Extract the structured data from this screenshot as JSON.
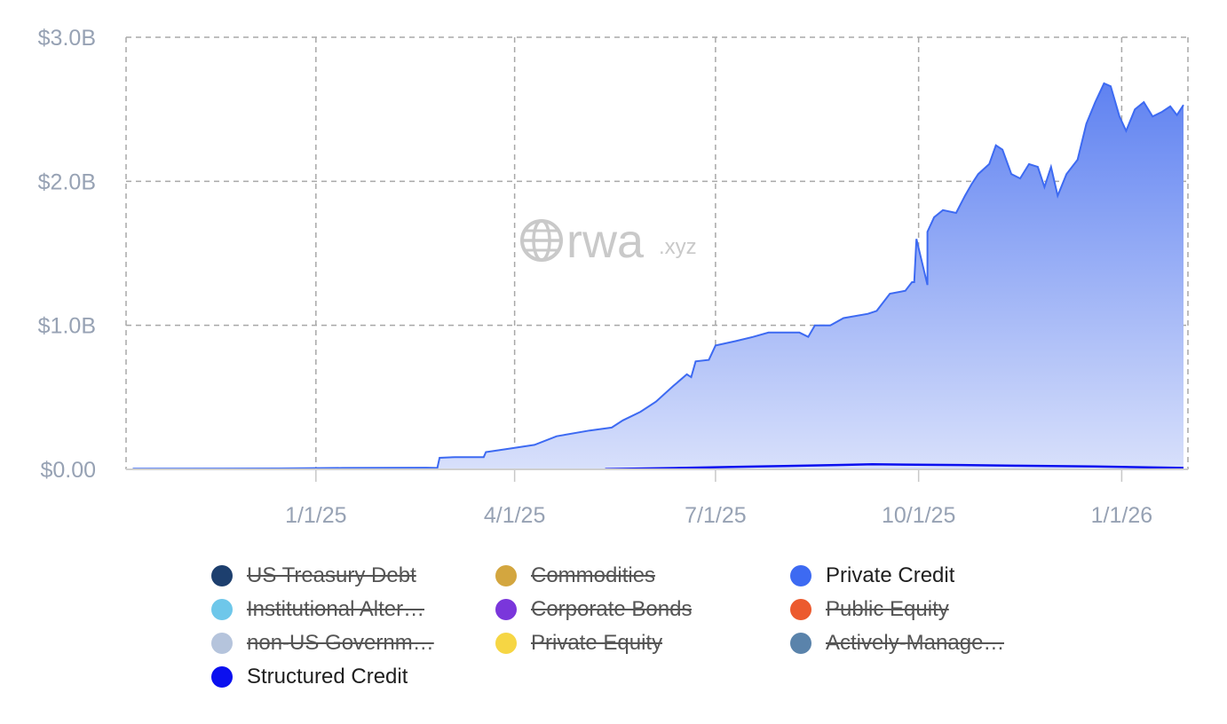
{
  "chart_data": {
    "type": "area",
    "y_ticks": [
      "$0.00",
      "$1.0B",
      "$2.0B",
      "$3.0B"
    ],
    "y_tick_values": [
      0,
      1.0,
      2.0,
      3.0
    ],
    "ylim": [
      0,
      3.0
    ],
    "y_unit": "billions USD",
    "x_ticks": [
      "1/1/25",
      "4/1/25",
      "7/1/25",
      "10/1/25",
      "1/1/26"
    ],
    "x_tick_dates": [
      "2025-01-01",
      "2025-04-01",
      "2025-07-01",
      "2025-10-01",
      "2026-01-01"
    ],
    "xlim": [
      "2024-10-07",
      "2026-01-31"
    ],
    "grid": true,
    "legend_position": "bottom",
    "series": [
      {
        "name": "Private Credit",
        "color": "#3d6af2",
        "visible": true,
        "points": [
          [
            "2024-10-10",
            0.005
          ],
          [
            "2024-12-15",
            0.006
          ],
          [
            "2025-01-13",
            0.01
          ],
          [
            "2025-02-20",
            0.012
          ],
          [
            "2025-02-25",
            0.01
          ],
          [
            "2025-02-26",
            0.08
          ],
          [
            "2025-03-05",
            0.085
          ],
          [
            "2025-03-18",
            0.085
          ],
          [
            "2025-03-19",
            0.12
          ],
          [
            "2025-03-28",
            0.14
          ],
          [
            "2025-04-10",
            0.17
          ],
          [
            "2025-04-20",
            0.23
          ],
          [
            "2025-05-05",
            0.27
          ],
          [
            "2025-05-15",
            0.29
          ],
          [
            "2025-05-20",
            0.34
          ],
          [
            "2025-05-28",
            0.4
          ],
          [
            "2025-06-04",
            0.47
          ],
          [
            "2025-06-12",
            0.58
          ],
          [
            "2025-06-18",
            0.66
          ],
          [
            "2025-06-20",
            0.64
          ],
          [
            "2025-06-22",
            0.75
          ],
          [
            "2025-06-28",
            0.76
          ],
          [
            "2025-07-01",
            0.86
          ],
          [
            "2025-07-10",
            0.89
          ],
          [
            "2025-07-18",
            0.92
          ],
          [
            "2025-07-25",
            0.95
          ],
          [
            "2025-08-08",
            0.95
          ],
          [
            "2025-08-12",
            0.92
          ],
          [
            "2025-08-15",
            1.0
          ],
          [
            "2025-08-22",
            1.0
          ],
          [
            "2025-08-28",
            1.05
          ],
          [
            "2025-09-08",
            1.08
          ],
          [
            "2025-09-12",
            1.1
          ],
          [
            "2025-09-18",
            1.22
          ],
          [
            "2025-09-25",
            1.24
          ],
          [
            "2025-10-05",
            1.28
          ],
          [
            "2025-09-27",
            1.28
          ],
          [
            "2025-09-28",
            1.3
          ],
          [
            "2025-09-29",
            1.3
          ],
          [
            "2025-09-30",
            1.6
          ],
          [
            "2025-10-05",
            1.65
          ],
          [
            "2025-10-08",
            1.75
          ],
          [
            "2025-10-12",
            1.8
          ],
          [
            "2025-10-18",
            1.78
          ],
          [
            "2025-10-22",
            1.9
          ],
          [
            "2025-10-25",
            1.98
          ],
          [
            "2025-10-28",
            2.05
          ],
          [
            "2025-11-02",
            2.12
          ],
          [
            "2025-11-05",
            2.25
          ],
          [
            "2025-11-08",
            2.22
          ],
          [
            "2025-11-12",
            2.05
          ],
          [
            "2025-11-16",
            2.02
          ],
          [
            "2025-11-20",
            2.12
          ],
          [
            "2025-11-24",
            2.1
          ],
          [
            "2025-11-27",
            1.96
          ],
          [
            "2025-11-30",
            2.1
          ],
          [
            "2025-12-03",
            1.9
          ],
          [
            "2025-12-07",
            2.05
          ],
          [
            "2025-12-12",
            2.15
          ],
          [
            "2025-12-16",
            2.4
          ],
          [
            "2025-12-20",
            2.55
          ],
          [
            "2025-12-24",
            2.68
          ],
          [
            "2025-12-27",
            2.66
          ],
          [
            "2025-12-31",
            2.45
          ],
          [
            "2026-01-03",
            2.35
          ],
          [
            "2026-01-07",
            2.5
          ],
          [
            "2026-01-11",
            2.55
          ],
          [
            "2026-01-15",
            2.45
          ],
          [
            "2026-01-19",
            2.48
          ],
          [
            "2026-01-23",
            2.52
          ],
          [
            "2026-01-26",
            2.46
          ],
          [
            "2026-01-29",
            2.53
          ]
        ]
      },
      {
        "name": "Structured Credit",
        "color": "#0b10ef",
        "visible": true,
        "points": [
          [
            "2025-05-12",
            0.002
          ],
          [
            "2025-06-15",
            0.01
          ],
          [
            "2025-07-20",
            0.02
          ],
          [
            "2025-08-25",
            0.03
          ],
          [
            "2025-09-10",
            0.035
          ],
          [
            "2025-10-20",
            0.03
          ],
          [
            "2025-11-15",
            0.025
          ],
          [
            "2025-12-20",
            0.02
          ],
          [
            "2026-01-29",
            0.01
          ]
        ]
      }
    ]
  },
  "watermark": {
    "main": "rwa",
    "sub": ".xyz"
  },
  "legend": {
    "items": [
      {
        "label": "US Treasury Debt",
        "color": "#1d3f6e",
        "visible": false
      },
      {
        "label": "Commodities",
        "color": "#d3a63f",
        "visible": false
      },
      {
        "label": "Private Credit",
        "color": "#3d6af2",
        "visible": true
      },
      {
        "label": "Institutional Alter…",
        "color": "#6ec7ea",
        "visible": false
      },
      {
        "label": "Corporate Bonds",
        "color": "#7a36db",
        "visible": false
      },
      {
        "label": "Public Equity",
        "color": "#ec5a2e",
        "visible": false
      },
      {
        "label": "non-US Governm…",
        "color": "#b5c4dc",
        "visible": false
      },
      {
        "label": "Private Equity",
        "color": "#f6d644",
        "visible": false
      },
      {
        "label": "Actively-Manage…",
        "color": "#5a83ab",
        "visible": false
      },
      {
        "label": "Structured Credit",
        "color": "#0b10ef",
        "visible": true
      }
    ]
  }
}
